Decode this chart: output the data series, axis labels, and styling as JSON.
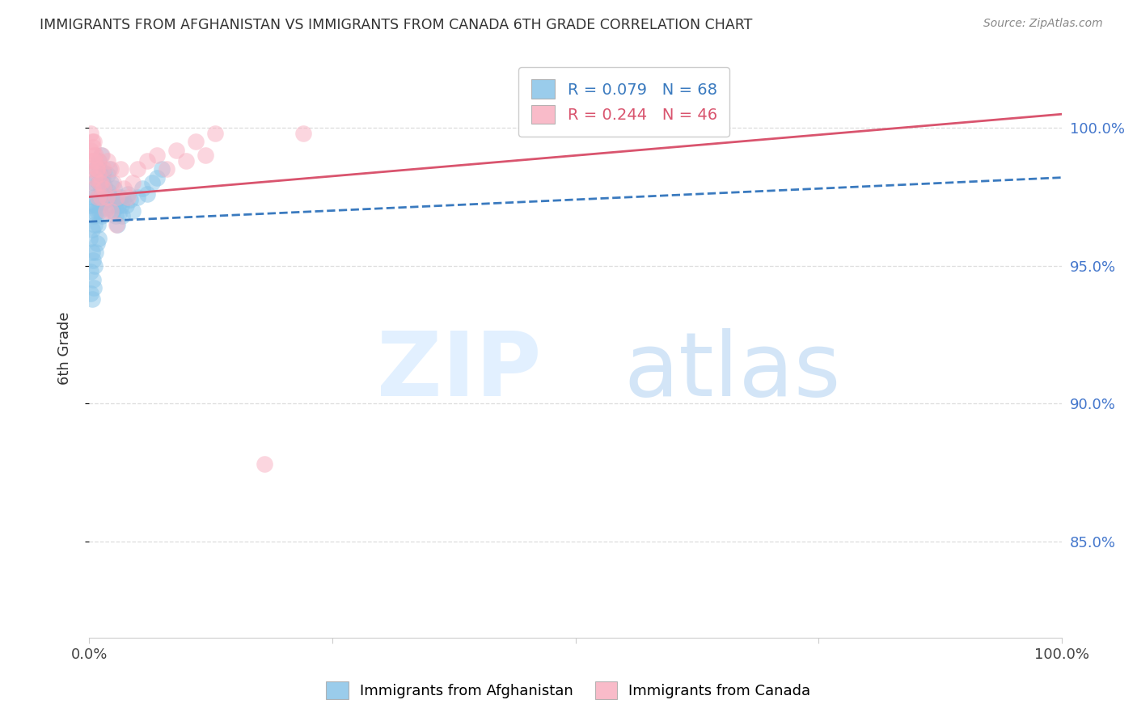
{
  "title": "IMMIGRANTS FROM AFGHANISTAN VS IMMIGRANTS FROM CANADA 6TH GRADE CORRELATION CHART",
  "source": "Source: ZipAtlas.com",
  "ylabel": "6th Grade",
  "ylabel_ticks": [
    "100.0%",
    "95.0%",
    "90.0%",
    "85.0%"
  ],
  "ylabel_tick_values": [
    1.0,
    0.95,
    0.9,
    0.85
  ],
  "xlim": [
    0.0,
    1.0
  ],
  "ylim": [
    0.815,
    1.025
  ],
  "legend_blue": "R = 0.079   N = 68",
  "legend_pink": "R = 0.244   N = 46",
  "legend_label_blue": "Immigrants from Afghanistan",
  "legend_label_pink": "Immigrants from Canada",
  "blue_color": "#88c4e8",
  "pink_color": "#f9afc0",
  "blue_line_color": "#3a7abf",
  "pink_line_color": "#d9546e",
  "grid_color": "#dddddd",
  "title_color": "#333333",
  "right_axis_color": "#4477cc",
  "blue_scatter_x": [
    0.001,
    0.002,
    0.002,
    0.003,
    0.003,
    0.004,
    0.004,
    0.005,
    0.005,
    0.005,
    0.006,
    0.006,
    0.007,
    0.007,
    0.008,
    0.008,
    0.009,
    0.009,
    0.01,
    0.01,
    0.011,
    0.011,
    0.012,
    0.012,
    0.013,
    0.013,
    0.014,
    0.014,
    0.015,
    0.015,
    0.016,
    0.017,
    0.018,
    0.019,
    0.02,
    0.021,
    0.022,
    0.023,
    0.024,
    0.025,
    0.026,
    0.027,
    0.028,
    0.029,
    0.03,
    0.031,
    0.032,
    0.033,
    0.034,
    0.035,
    0.038,
    0.04,
    0.042,
    0.045,
    0.05,
    0.055,
    0.06,
    0.065,
    0.07,
    0.075,
    0.002,
    0.003,
    0.004,
    0.005,
    0.006,
    0.007,
    0.008,
    0.01
  ],
  "blue_scatter_y": [
    0.96,
    0.948,
    0.972,
    0.955,
    0.963,
    0.97,
    0.952,
    0.975,
    0.968,
    0.98,
    0.965,
    0.978,
    0.972,
    0.985,
    0.982,
    0.97,
    0.975,
    0.965,
    0.98,
    0.988,
    0.97,
    0.985,
    0.978,
    0.99,
    0.975,
    0.968,
    0.982,
    0.973,
    0.976,
    0.984,
    0.979,
    0.974,
    0.971,
    0.983,
    0.977,
    0.985,
    0.98,
    0.975,
    0.972,
    0.97,
    0.978,
    0.968,
    0.974,
    0.965,
    0.972,
    0.969,
    0.975,
    0.972,
    0.968,
    0.974,
    0.972,
    0.976,
    0.974,
    0.97,
    0.975,
    0.978,
    0.976,
    0.98,
    0.982,
    0.985,
    0.94,
    0.938,
    0.945,
    0.942,
    0.95,
    0.955,
    0.958,
    0.96
  ],
  "blue_line_x": [
    0.0,
    1.0
  ],
  "blue_line_y": [
    0.966,
    0.982
  ],
  "pink_scatter_x": [
    0.001,
    0.002,
    0.003,
    0.004,
    0.005,
    0.006,
    0.007,
    0.008,
    0.009,
    0.01,
    0.011,
    0.012,
    0.013,
    0.015,
    0.017,
    0.019,
    0.022,
    0.025,
    0.028,
    0.032,
    0.036,
    0.04,
    0.045,
    0.05,
    0.06,
    0.07,
    0.08,
    0.09,
    0.1,
    0.11,
    0.12,
    0.13,
    0.002,
    0.003,
    0.004,
    0.005,
    0.006,
    0.008,
    0.01,
    0.012,
    0.015,
    0.018,
    0.022,
    0.028,
    0.18,
    0.22
  ],
  "pink_scatter_y": [
    0.985,
    0.992,
    0.988,
    0.978,
    0.995,
    0.982,
    0.99,
    0.985,
    0.975,
    0.988,
    0.98,
    0.975,
    0.99,
    0.985,
    0.97,
    0.988,
    0.985,
    0.98,
    0.975,
    0.985,
    0.978,
    0.975,
    0.98,
    0.985,
    0.988,
    0.99,
    0.985,
    0.992,
    0.988,
    0.995,
    0.99,
    0.998,
    0.998,
    0.995,
    0.993,
    0.99,
    0.988,
    0.985,
    0.983,
    0.98,
    0.978,
    0.975,
    0.97,
    0.965,
    0.878,
    0.998
  ],
  "pink_line_x": [
    0.0,
    1.0
  ],
  "pink_line_y": [
    0.975,
    1.005
  ]
}
